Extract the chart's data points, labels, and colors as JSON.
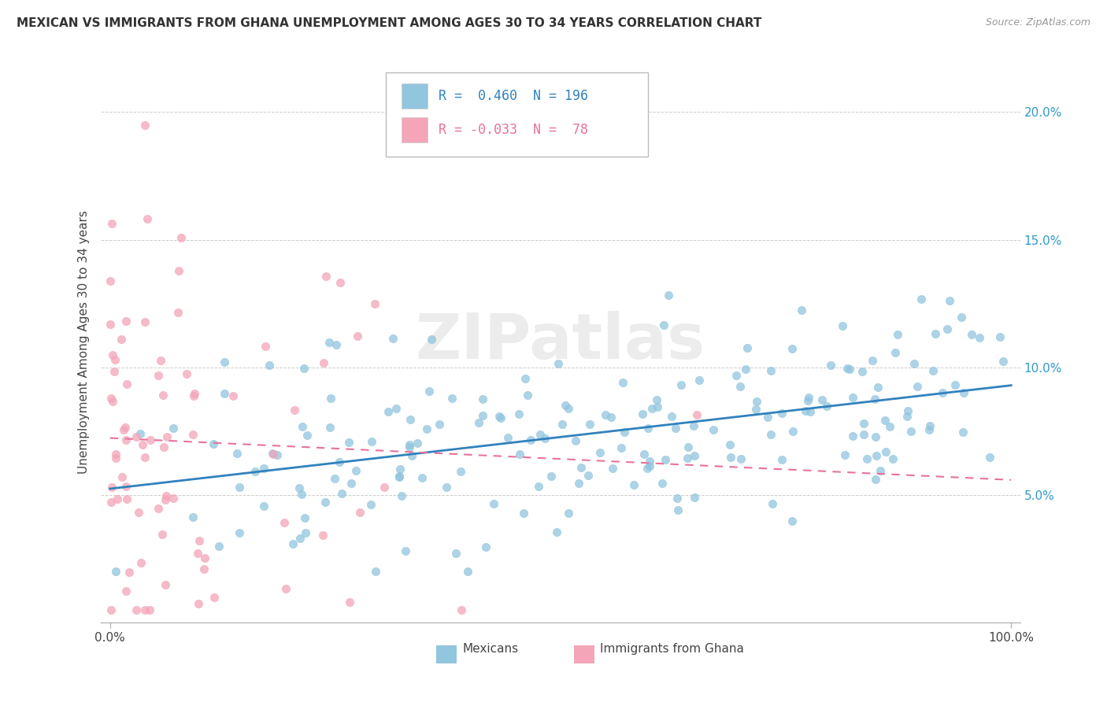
{
  "title": "MEXICAN VS IMMIGRANTS FROM GHANA UNEMPLOYMENT AMONG AGES 30 TO 34 YEARS CORRELATION CHART",
  "source": "Source: ZipAtlas.com",
  "ylabel": "Unemployment Among Ages 30 to 34 years",
  "xlim": [
    -0.01,
    1.01
  ],
  "ylim": [
    0.0,
    0.22
  ],
  "xtick_positions": [
    0.0,
    1.0
  ],
  "xtick_labels": [
    "0.0%",
    "100.0%"
  ],
  "yticks": [
    0.0,
    0.05,
    0.1,
    0.15,
    0.2
  ],
  "ytick_labels": [
    "",
    "5.0%",
    "10.0%",
    "15.0%",
    "20.0%"
  ],
  "blue_R": 0.46,
  "blue_N": 196,
  "pink_R": -0.033,
  "pink_N": 78,
  "blue_color": "#92c5de",
  "pink_color": "#f4a5b8",
  "blue_line_color": "#3182bd",
  "pink_line_color": "#e8729a",
  "legend_label_blue": "Mexicans",
  "legend_label_pink": "Immigrants from Ghana",
  "watermark": "ZIPatlas",
  "background_color": "#ffffff",
  "seed_blue": 12,
  "seed_pink": 7
}
